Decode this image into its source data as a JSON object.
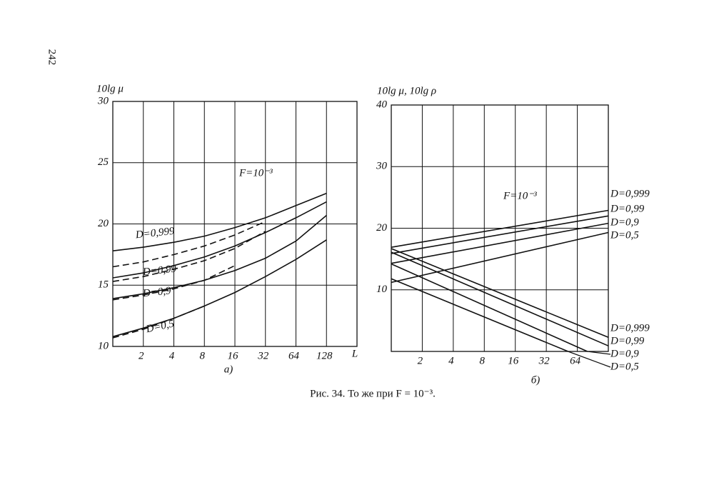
{
  "page_number": "242",
  "caption": "Рис. 34. То же при F = 10⁻³.",
  "chart_data": [
    {
      "type": "line",
      "ylabel": "10lg μ",
      "xlabel": "L",
      "subcaption": "а)",
      "annotation": "F=10⁻³",
      "log_x": true,
      "grid": true,
      "xlim": [
        1,
        256
      ],
      "xticks": [
        2,
        4,
        8,
        16,
        32,
        64,
        128
      ],
      "ylim": [
        10,
        30
      ],
      "yticks": [
        10,
        15,
        20,
        25,
        30
      ],
      "x": [
        1,
        2,
        4,
        8,
        16,
        32,
        64,
        128
      ],
      "series": [
        {
          "name": "D=0,999",
          "color": "#111111",
          "values": [
            17.8,
            18.1,
            18.5,
            19.0,
            19.7,
            20.5,
            21.5,
            22.5
          ]
        },
        {
          "name": "D=0,99",
          "color": "#111111",
          "values": [
            15.6,
            16.0,
            16.6,
            17.3,
            18.2,
            19.3,
            20.5,
            21.8
          ]
        },
        {
          "name": "D=0,9",
          "color": "#111111",
          "values": [
            13.9,
            14.3,
            14.8,
            15.4,
            16.2,
            17.2,
            18.6,
            20.7
          ]
        },
        {
          "name": "D=0,5",
          "color": "#111111",
          "values": [
            10.8,
            11.5,
            12.3,
            13.3,
            14.4,
            15.7,
            17.1,
            18.7
          ]
        },
        {
          "color": "#111111",
          "dash": true,
          "values": [
            16.5,
            16.9,
            17.5,
            18.2,
            19.1,
            20.2,
            null,
            null
          ]
        },
        {
          "color": "#111111",
          "dash": true,
          "values": [
            15.3,
            15.7,
            16.3,
            17.0,
            18.0,
            19.4,
            null,
            null
          ]
        },
        {
          "color": "#111111",
          "dash": true,
          "values": [
            13.8,
            14.2,
            14.7,
            15.4,
            16.6,
            null,
            null,
            null
          ]
        },
        {
          "color": "#111111",
          "dash": true,
          "values": [
            10.7,
            11.4,
            12.3,
            13.3,
            null,
            null,
            null,
            null
          ]
        }
      ]
    },
    {
      "type": "line",
      "ylabel": "10lg μ, 10lg ρ",
      "subcaption": "б)",
      "annotation": "F=10⁻³",
      "log_x": true,
      "grid": true,
      "xlim": [
        1,
        128
      ],
      "xticks": [
        2,
        4,
        8,
        16,
        32,
        64
      ],
      "ylim": [
        0,
        40
      ],
      "yticks": [
        10,
        20,
        30,
        40
      ],
      "series": [
        {
          "name": "D=0,999",
          "color": "#111111",
          "x": [
            1,
            128
          ],
          "values": [
            16.9,
            22.9
          ]
        },
        {
          "name": "D=0,99",
          "color": "#111111",
          "x": [
            1,
            128
          ],
          "values": [
            15.9,
            22.0
          ]
        },
        {
          "name": "D=0,9",
          "color": "#111111",
          "x": [
            1,
            128
          ],
          "values": [
            14.3,
            20.8
          ]
        },
        {
          "name": "D=0,5",
          "color": "#111111",
          "x": [
            1,
            128
          ],
          "values": [
            11.2,
            19.3
          ]
        },
        {
          "name": "D=0,999",
          "color": "#111111",
          "x": [
            1,
            128
          ],
          "values": [
            16.7,
            2.3
          ]
        },
        {
          "name": "D=0,99",
          "color": "#111111",
          "x": [
            1,
            128
          ],
          "values": [
            16.1,
            0.9
          ]
        },
        {
          "name": "D=0,9",
          "color": "#111111",
          "x": [
            1,
            80
          ],
          "values": [
            14.2,
            0
          ]
        },
        {
          "name": "D=0,5",
          "color": "#111111",
          "x": [
            1,
            52
          ],
          "values": [
            11.8,
            0
          ]
        }
      ]
    }
  ]
}
